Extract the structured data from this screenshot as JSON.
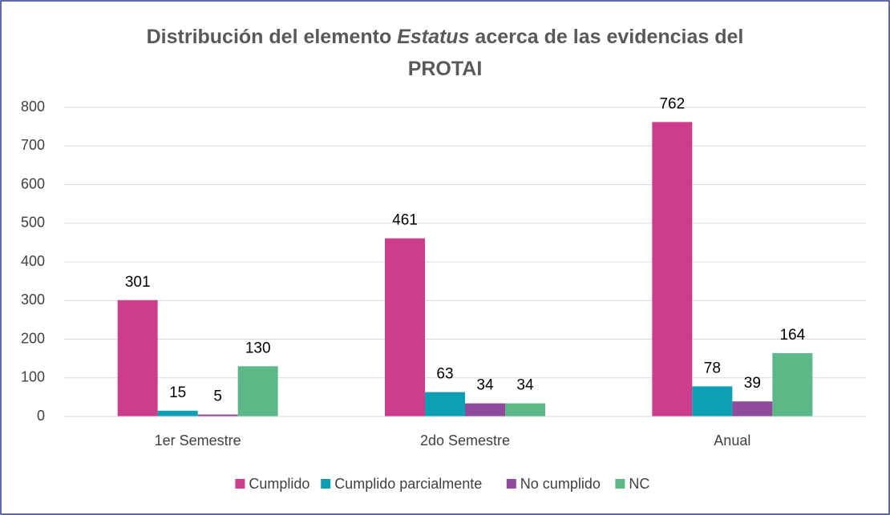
{
  "chart_data": {
    "type": "bar",
    "title": [
      [
        {
          "text": "Distribución del elemento "
        },
        {
          "text": "Estatus",
          "italic": true
        },
        {
          "text": " acerca de las evidencias del"
        }
      ],
      [
        {
          "text": "PROTAI"
        }
      ]
    ],
    "categories": [
      "1er Semestre",
      "2do Semestre",
      "Anual"
    ],
    "series": [
      {
        "name": "Cumplido",
        "color": "#cc3d8c",
        "values": [
          301,
          461,
          762
        ]
      },
      {
        "name": "Cumplido parcialmente",
        "color": "#0e9fb5",
        "values": [
          15,
          63,
          78
        ]
      },
      {
        "name": "No cumplido",
        "color": "#8e4b9c",
        "values": [
          5,
          34,
          39
        ]
      },
      {
        "name": "NC",
        "color": "#5cb887",
        "values": [
          130,
          34,
          164
        ]
      }
    ],
    "ylim": [
      0,
      800
    ],
    "yticks": [
      0,
      100,
      200,
      300,
      400,
      500,
      600,
      700,
      800
    ],
    "grid": true,
    "legend": "bottom"
  }
}
